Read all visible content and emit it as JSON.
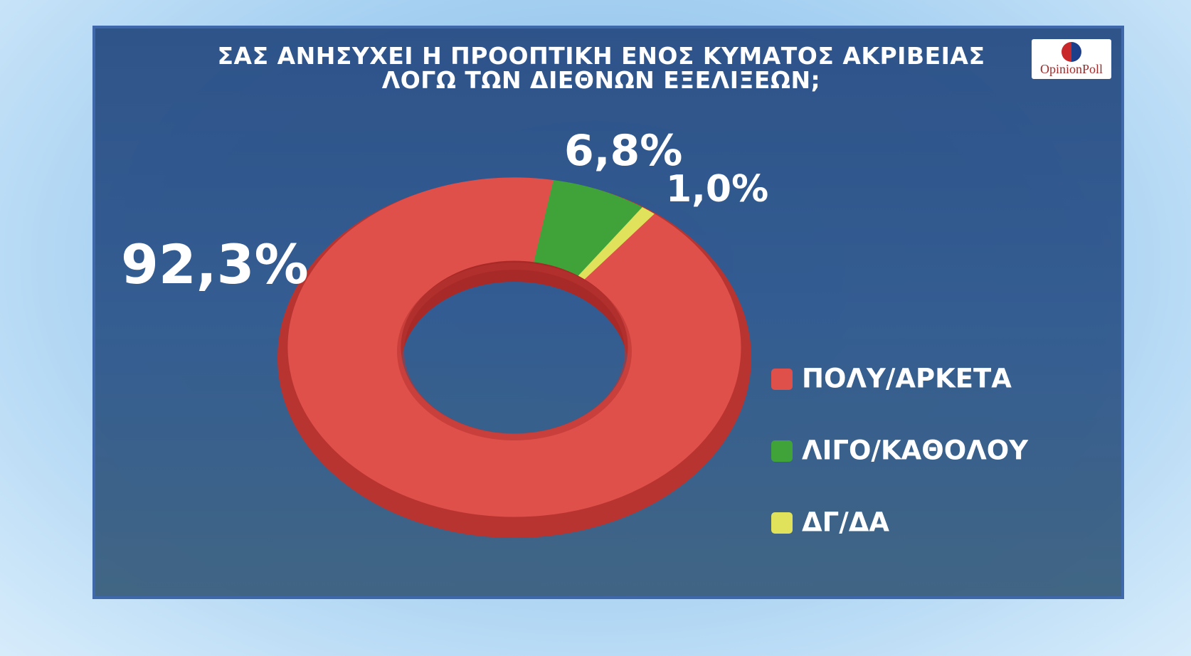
{
  "chart_data": {
    "type": "pie",
    "title": "ΣΑΣ ΑΝΗΣΥΧΕΙ Η ΠΡΟΟΠΤΙΚΗ ΕΝΟΣ ΚΥΜΑΤΟΣ ΑΚΡΙΒΕΙΑΣ ΛΟΓΩ ΤΩΝ ΔΙΕΘΝΩΝ ΕΞΕΛΙΞΕΩΝ;",
    "logo": "OpinionPoll",
    "categories": [
      "ΠΟΛΥ/ΑΡΚΕΤΑ",
      "ΛΙΓΟ/ΚΑΘΟΛΟΥ",
      "ΔΓ/ΔΑ"
    ],
    "values": [
      92.3,
      6.8,
      1.0
    ],
    "value_labels": [
      "92,3%",
      "6,8%",
      "1,0%"
    ],
    "colors": [
      "#e0504b",
      "#3fa33a",
      "#dfe25a"
    ],
    "donut": true,
    "legend": "right"
  }
}
